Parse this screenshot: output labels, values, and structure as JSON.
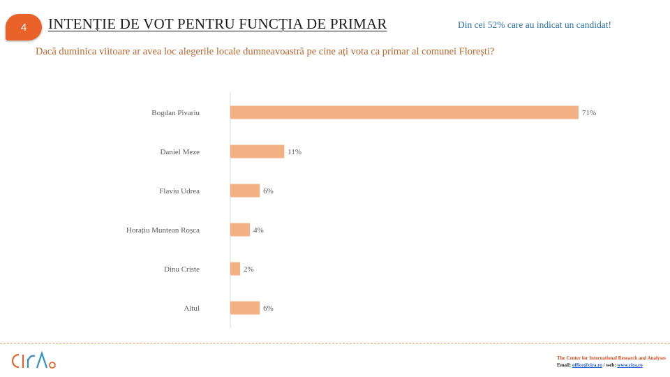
{
  "slide": {
    "number": "4"
  },
  "header": {
    "title": "INTENȚIE DE VOT PENTRU FUNCȚIA DE PRIMAR",
    "note": "Din cei 52% care au indicat un candidat!",
    "question": "Dacă duminica viitoare ar avea loc alegerile locale dumneavoastră pe cine ați vota ca primar al comunei Florești?"
  },
  "chart_data": {
    "type": "bar",
    "orientation": "horizontal",
    "categories": [
      "Bogdan Pivariu",
      "Daniel Meze",
      "Flaviu Udrea",
      "Horațiu Muntean Roșca",
      "Dinu Criste",
      "Altul"
    ],
    "values": [
      71,
      11,
      6,
      4,
      2,
      6
    ],
    "value_labels": [
      "71%",
      "11%",
      "6%",
      "4%",
      "2%",
      "6%"
    ],
    "unit": "%",
    "xlim": [
      0,
      71
    ],
    "grid": false,
    "legend": "none",
    "bar_color": "#f4b183"
  },
  "footer": {
    "logo_text": "cira",
    "org": "The Center for International Research and Analyses",
    "email_label": "Email:",
    "email": "office@cira.ro",
    "separator": "/ web:",
    "web": "www.cira.ro"
  },
  "colors": {
    "accent": "#e8622a",
    "note": "#2a72a8",
    "question": "#c0652b",
    "logo": "#2f8fc7"
  }
}
